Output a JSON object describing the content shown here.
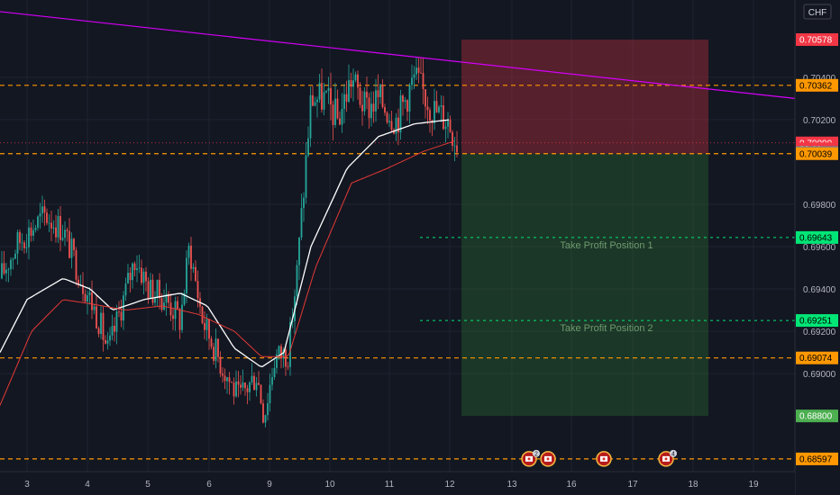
{
  "currency": "CHF",
  "chart_data": {
    "type": "candlestick",
    "ylim": [
      0.6852,
      0.7068
    ],
    "x_tick_labels": [
      "3",
      "4",
      "5",
      "6",
      "9",
      "10",
      "11",
      "12",
      "13",
      "16",
      "17",
      "18",
      "19"
    ],
    "y_tick_labels": [
      "0.70400",
      "0.70200",
      "0.69800",
      "0.69600",
      "0.69400",
      "0.69200",
      "0.69000"
    ],
    "y_tick_values": [
      0.704,
      0.702,
      0.698,
      0.696,
      0.694,
      0.692,
      0.69
    ],
    "horizontal_levels": [
      {
        "label": "0.70362",
        "value": 0.70362,
        "color": "#ff9800"
      },
      {
        "label": "0.70039",
        "value": 0.70039,
        "color": "#ff9800"
      },
      {
        "label": "0.69074",
        "value": 0.69074,
        "color": "#ff9800"
      },
      {
        "label": "0.68597",
        "value": 0.68597,
        "color": "#ff9800"
      }
    ],
    "price_labels": [
      {
        "label": "0.70578",
        "value": 0.70578,
        "bg": "#f23645",
        "fg": "#ffffff"
      },
      {
        "label": "0.70362",
        "value": 0.70362,
        "bg": "#ff9800",
        "fg": "#000000"
      },
      {
        "label": "0.70090",
        "value": 0.7009,
        "bg": "#f23645",
        "fg": "#ffffff"
      },
      {
        "label": "29:11",
        "value": 0.70062,
        "bg": "#f23645",
        "fg": "#ffffff"
      },
      {
        "label": "0.70045",
        "value": 0.70045,
        "bg": "#787b86",
        "fg": "#ffffff"
      },
      {
        "label": "0.70039",
        "value": 0.70039,
        "bg": "#ff9800",
        "fg": "#000000"
      },
      {
        "label": "0.69643",
        "value": 0.69643,
        "bg": "#00e676",
        "fg": "#000000"
      },
      {
        "label": "0.69251",
        "value": 0.69251,
        "bg": "#00e676",
        "fg": "#000000"
      },
      {
        "label": "0.69074",
        "value": 0.69074,
        "bg": "#ff9800",
        "fg": "#000000"
      },
      {
        "label": "0.68800",
        "value": 0.688,
        "bg": "#4caf50",
        "fg": "#ffffff"
      },
      {
        "label": "0.68597",
        "value": 0.68597,
        "bg": "#ff9800",
        "fg": "#000000"
      }
    ],
    "position": {
      "entry": 0.70039,
      "stop": 0.70578,
      "target": 0.688,
      "take_profits": [
        {
          "label": "Take Profit Position 1",
          "value": 0.69643
        },
        {
          "label": "Take Profit Position 2",
          "value": 0.69251
        }
      ]
    },
    "trendline": {
      "from": 0.7071,
      "to": 0.703,
      "color": "#d500f9"
    },
    "current_price_line": 0.7009,
    "events": [
      {
        "badge": "2"
      },
      {
        "badge": ""
      },
      {
        "badge": ""
      },
      {
        "badge": "4"
      }
    ],
    "series": [
      {
        "name": "",
        "color": "#ffffff",
        "anchors": [
          [
            0,
            0.691
          ],
          [
            30,
            0.6935
          ],
          [
            70,
            0.6945
          ],
          [
            100,
            0.694
          ],
          [
            125,
            0.693
          ],
          [
            160,
            0.6935
          ],
          [
            200,
            0.6938
          ],
          [
            230,
            0.6932
          ],
          [
            260,
            0.6912
          ],
          [
            290,
            0.6903
          ],
          [
            315,
            0.691
          ],
          [
            345,
            0.696
          ],
          [
            385,
            0.6997
          ],
          [
            420,
            0.7012
          ],
          [
            460,
            0.7018
          ],
          [
            500,
            0.702
          ]
        ]
      },
      {
        "name": "",
        "color": "#e53935",
        "anchors": [
          [
            0,
            0.6885
          ],
          [
            35,
            0.692
          ],
          [
            70,
            0.6935
          ],
          [
            100,
            0.6933
          ],
          [
            140,
            0.693
          ],
          [
            180,
            0.6932
          ],
          [
            220,
            0.6928
          ],
          [
            260,
            0.692
          ],
          [
            290,
            0.6908
          ],
          [
            320,
            0.6908
          ],
          [
            350,
            0.695
          ],
          [
            390,
            0.699
          ],
          [
            430,
            0.6997
          ],
          [
            470,
            0.7005
          ],
          [
            505,
            0.701
          ]
        ]
      }
    ]
  }
}
